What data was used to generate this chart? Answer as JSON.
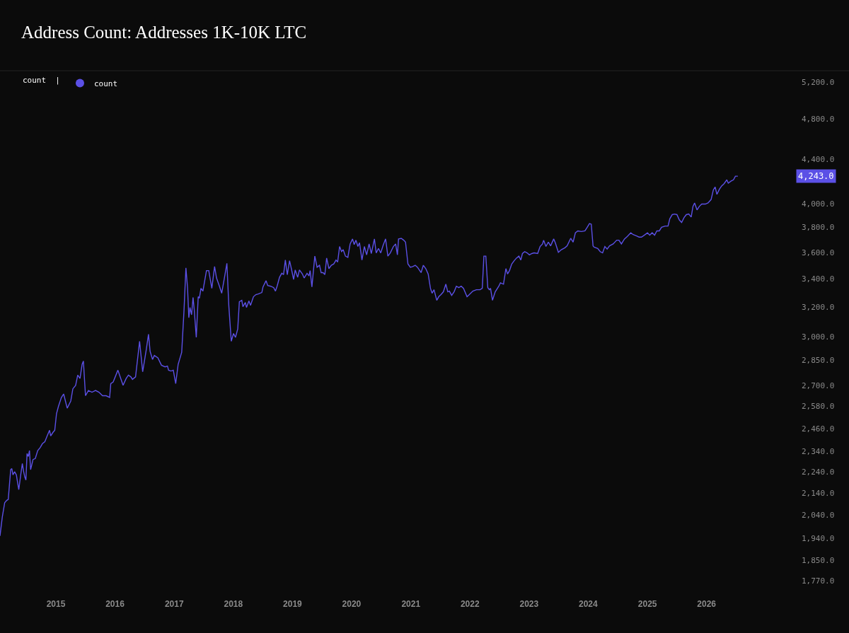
{
  "chart_data": {
    "type": "line",
    "title": "Address Count: Addresses 1K-10K LTC",
    "legend_title": "count |",
    "legend": "top left",
    "log": true,
    "x": [
      "2014-01-21",
      "2014-02-04",
      "2014-02-19",
      "2014-03-03",
      "2014-03-13",
      "2014-03-28",
      "2014-04-04",
      "2014-04-11",
      "2014-04-21",
      "2014-05-02",
      "2014-05-17",
      "2014-05-29",
      "2014-06-08",
      "2014-06-15",
      "2014-06-23",
      "2014-06-30",
      "2014-07-07",
      "2014-07-15",
      "2014-07-22",
      "2014-07-29",
      "2014-08-13",
      "2014-08-27",
      "2014-09-11",
      "2014-09-26",
      "2014-10-10",
      "2014-10-25",
      "2014-11-08",
      "2014-11-23",
      "2014-11-30",
      "2014-12-15",
      "2014-12-25",
      "2015-01-05",
      "2015-01-17",
      "2015-02-04",
      "2015-02-18",
      "2015-03-12",
      "2015-04-03",
      "2015-04-16",
      "2015-05-03",
      "2015-05-16",
      "2015-05-30",
      "2015-06-12",
      "2015-06-20",
      "2015-06-29",
      "2015-07-03",
      "2015-07-21",
      "2015-08-12",
      "2015-09-03",
      "2015-09-24",
      "2015-10-16",
      "2015-11-07",
      "2015-11-29",
      "2015-12-06",
      "2015-12-21",
      "2016-01-19",
      "2016-02-02",
      "2016-02-20",
      "2016-03-10",
      "2016-03-24",
      "2016-04-08",
      "2016-04-18",
      "2016-05-07",
      "2016-06-01",
      "2016-06-20",
      "2016-07-12",
      "2016-07-26",
      "2016-08-05",
      "2016-08-20",
      "2016-08-31",
      "2016-09-22",
      "2016-10-14",
      "2016-11-05",
      "2016-11-20",
      "2016-11-27",
      "2016-12-12",
      "2016-12-26",
      "2017-01-10",
      "2017-01-25",
      "2017-02-16",
      "2017-03-02",
      "2017-03-14",
      "2017-03-24",
      "2017-04-01",
      "2017-04-08",
      "2017-04-18",
      "2017-04-27",
      "2017-05-04",
      "2017-05-17",
      "2017-05-29",
      "2017-06-05",
      "2017-06-15",
      "2017-06-27",
      "2017-07-08",
      "2017-07-19",
      "2017-08-02",
      "2017-08-21",
      "2017-09-07",
      "2017-09-19",
      "2017-10-07",
      "2017-10-21",
      "2017-11-05",
      "2017-11-22",
      "2017-12-04",
      "2017-12-19",
      "2018-01-02",
      "2018-01-14",
      "2018-01-28",
      "2018-02-07",
      "2018-02-22",
      "2018-03-01",
      "2018-03-16",
      "2018-03-23",
      "2018-04-07",
      "2018-04-17",
      "2018-05-05",
      "2018-05-20",
      "2018-06-04",
      "2018-06-26",
      "2018-07-03",
      "2018-07-22",
      "2018-08-01",
      "2018-08-20",
      "2018-09-07",
      "2018-09-18",
      "2018-09-28",
      "2018-10-13",
      "2018-10-27",
      "2018-11-07",
      "2018-11-18",
      "2018-11-30",
      "2018-12-14",
      "2018-12-25",
      "2019-01-08",
      "2019-01-18",
      "2019-02-02",
      "2019-02-13",
      "2019-03-03",
      "2019-03-14",
      "2019-04-01",
      "2019-04-13",
      "2019-04-20",
      "2019-05-01",
      "2019-05-19",
      "2019-06-02",
      "2019-06-17",
      "2019-06-27",
      "2019-07-09",
      "2019-07-20",
      "2019-07-31",
      "2019-08-14",
      "2019-08-29",
      "2019-09-13",
      "2019-09-27",
      "2019-10-07",
      "2019-10-19",
      "2019-10-31",
      "2019-11-10",
      "2019-11-24",
      "2019-12-09",
      "2019-12-23",
      "2020-01-07",
      "2020-01-17",
      "2020-01-28",
      "2020-02-09",
      "2020-02-19",
      "2020-03-05",
      "2020-03-20",
      "2020-04-03",
      "2020-04-18",
      "2020-05-02",
      "2020-05-21",
      "2020-06-01",
      "2020-06-15",
      "2020-06-29",
      "2020-07-14",
      "2020-07-29",
      "2020-08-12",
      "2020-08-27",
      "2020-09-15",
      "2020-09-29",
      "2020-10-10",
      "2020-10-17",
      "2020-11-03",
      "2020-11-18",
      "2020-11-29",
      "2020-12-14",
      "2020-12-29",
      "2021-01-13",
      "2021-01-28",
      "2021-02-11",
      "2021-03-05",
      "2021-03-19",
      "2021-04-03",
      "2021-04-18",
      "2021-05-02",
      "2021-05-12",
      "2021-05-24",
      "2021-06-10",
      "2021-06-22",
      "2021-07-06",
      "2021-07-21",
      "2021-08-05",
      "2021-08-17",
      "2021-08-27",
      "2021-09-10",
      "2021-09-25",
      "2021-10-09",
      "2021-10-24",
      "2021-11-08",
      "2021-11-22",
      "2021-12-14",
      "2021-12-28",
      "2022-01-19",
      "2022-02-10",
      "2022-03-04",
      "2022-03-18",
      "2022-03-28",
      "2022-04-09",
      "2022-04-21",
      "2022-05-01",
      "2022-05-08",
      "2022-05-20",
      "2022-06-06",
      "2022-06-28",
      "2022-07-08",
      "2022-07-27",
      "2022-08-11",
      "2022-08-21",
      "2022-09-02",
      "2022-09-16",
      "2022-10-01",
      "2022-10-15",
      "2022-10-30",
      "2022-11-11",
      "2022-11-21",
      "2022-12-05",
      "2022-12-20",
      "2023-01-03",
      "2023-01-18",
      "2023-02-01",
      "2023-02-23",
      "2023-03-10",
      "2023-03-25",
      "2023-04-01",
      "2023-04-15",
      "2023-04-30",
      "2023-05-14",
      "2023-06-02",
      "2023-06-12",
      "2023-07-01",
      "2023-07-19",
      "2023-08-10",
      "2023-08-24",
      "2023-09-15",
      "2023-09-30",
      "2023-10-14",
      "2023-10-29",
      "2023-11-20",
      "2023-12-12",
      "2023-12-26",
      "2024-01-09",
      "2024-01-20",
      "2024-01-31",
      "2024-02-07",
      "2024-02-29",
      "2024-03-15",
      "2024-03-30",
      "2024-04-13",
      "2024-04-27",
      "2024-05-12",
      "2024-06-03",
      "2024-06-25",
      "2024-07-09",
      "2024-07-24",
      "2024-08-12",
      "2024-08-30",
      "2024-09-20",
      "2024-10-05",
      "2024-10-24",
      "2024-11-10",
      "2024-11-25",
      "2024-12-12",
      "2025-01-01",
      "2025-01-15",
      "2025-01-30",
      "2025-02-14",
      "2025-02-28",
      "2025-03-15",
      "2025-03-29",
      "2025-04-20",
      "2025-05-08",
      "2025-05-19",
      "2025-06-03",
      "2025-06-17",
      "2025-07-02",
      "2025-07-17",
      "2025-07-31",
      "2025-08-15",
      "2025-08-29",
      "2025-09-13",
      "2025-09-28",
      "2025-10-09",
      "2025-10-19",
      "2025-11-03",
      "2025-11-17",
      "2025-12-02",
      "2025-12-24",
      "2026-01-10",
      "2026-01-29",
      "2026-02-12",
      "2026-02-23",
      "2026-03-06",
      "2026-03-21",
      "2026-04-04",
      "2026-04-19",
      "2026-05-06",
      "2026-05-15",
      "2026-06-02",
      "2026-06-16",
      "2026-06-28",
      "2026-07-13"
    ],
    "series": [
      {
        "name": "count",
        "color": "#5b50e6",
        "values": [
          1950,
          2030,
          2095,
          2105,
          2110,
          2250,
          2255,
          2225,
          2240,
          2225,
          2155,
          2225,
          2280,
          2245,
          2215,
          2200,
          2330,
          2315,
          2345,
          2250,
          2300,
          2305,
          2345,
          2360,
          2380,
          2390,
          2420,
          2450,
          2420,
          2440,
          2450,
          2540,
          2580,
          2630,
          2650,
          2570,
          2610,
          2680,
          2700,
          2760,
          2740,
          2825,
          2845,
          2700,
          2640,
          2670,
          2660,
          2670,
          2660,
          2640,
          2640,
          2630,
          2710,
          2720,
          2790,
          2750,
          2700,
          2740,
          2760,
          2750,
          2735,
          2750,
          2970,
          2780,
          2915,
          3015,
          2905,
          2855,
          2880,
          2865,
          2820,
          2810,
          2815,
          2790,
          2785,
          2790,
          2710,
          2825,
          2900,
          3170,
          3480,
          3335,
          3125,
          3195,
          3145,
          3265,
          3185,
          2995,
          3270,
          3260,
          3330,
          3310,
          3385,
          3460,
          3460,
          3330,
          3490,
          3405,
          3345,
          3295,
          3395,
          3515,
          3205,
          2970,
          3020,
          2995,
          3050,
          3235,
          3245,
          3200,
          3230,
          3195,
          3240,
          3210,
          3270,
          3285,
          3290,
          3300,
          3340,
          3385,
          3350,
          3345,
          3335,
          3310,
          3345,
          3410,
          3440,
          3430,
          3540,
          3430,
          3535,
          3475,
          3395,
          3465,
          3410,
          3465,
          3435,
          3405,
          3440,
          3420,
          3460,
          3340,
          3570,
          3485,
          3500,
          3445,
          3445,
          3430,
          3555,
          3475,
          3500,
          3510,
          3540,
          3525,
          3645,
          3605,
          3620,
          3570,
          3560,
          3665,
          3705,
          3660,
          3695,
          3645,
          3675,
          3540,
          3645,
          3580,
          3665,
          3590,
          3705,
          3595,
          3630,
          3595,
          3655,
          3705,
          3570,
          3595,
          3645,
          3665,
          3580,
          3705,
          3710,
          3695,
          3680,
          3510,
          3485,
          3490,
          3500,
          3485,
          3445,
          3500,
          3475,
          3435,
          3330,
          3295,
          3320,
          3245,
          3270,
          3285,
          3305,
          3360,
          3305,
          3310,
          3280,
          3305,
          3345,
          3335,
          3345,
          3330,
          3270,
          3285,
          3310,
          3320,
          3320,
          3330,
          3570,
          3570,
          3335,
          3320,
          3330,
          3245,
          3305,
          3345,
          3370,
          3360,
          3475,
          3435,
          3460,
          3510,
          3535,
          3555,
          3570,
          3540,
          3590,
          3605,
          3595,
          3580,
          3590,
          3595,
          3590,
          3645,
          3665,
          3695,
          3645,
          3680,
          3650,
          3705,
          3675,
          3600,
          3620,
          3635,
          3650,
          3710,
          3680,
          3755,
          3770,
          3765,
          3770,
          3800,
          3830,
          3825,
          3650,
          3640,
          3630,
          3605,
          3595,
          3645,
          3625,
          3650,
          3665,
          3695,
          3695,
          3665,
          3705,
          3725,
          3755,
          3740,
          3730,
          3720,
          3720,
          3735,
          3755,
          3735,
          3755,
          3735,
          3770,
          3770,
          3800,
          3810,
          3810,
          3870,
          3905,
          3910,
          3905,
          3860,
          3840,
          3880,
          3905,
          3910,
          3885,
          3975,
          4005,
          3945,
          3975,
          3995,
          3995,
          4005,
          4035,
          4120,
          4145,
          4080,
          4125,
          4155,
          4175,
          4210,
          4180,
          4200,
          4210,
          4243,
          4243
        ]
      }
    ],
    "xlim": [
      "2014-01-21",
      "2027-06-15"
    ],
    "xticks": [
      "2015",
      "2016",
      "2017",
      "2018",
      "2019",
      "2020",
      "2021",
      "2022",
      "2023",
      "2024",
      "2025",
      "2026"
    ],
    "ylim": [
      1770,
      5330
    ],
    "yticks": [
      {
        "value": 1770,
        "label": "1,770.0"
      },
      {
        "value": 1850,
        "label": "1,850.0"
      },
      {
        "value": 1940,
        "label": "1,940.0"
      },
      {
        "value": 2040,
        "label": "2,040.0"
      },
      {
        "value": 2140,
        "label": "2,140.0"
      },
      {
        "value": 2240,
        "label": "2,240.0"
      },
      {
        "value": 2340,
        "label": "2,340.0"
      },
      {
        "value": 2460,
        "label": "2,460.0"
      },
      {
        "value": 2580,
        "label": "2,580.0"
      },
      {
        "value": 2700,
        "label": "2,700.0"
      },
      {
        "value": 2850,
        "label": "2,850.0"
      },
      {
        "value": 3000,
        "label": "3,000.0"
      },
      {
        "value": 3200,
        "label": "3,200.0"
      },
      {
        "value": 3400,
        "label": "3,400.0"
      },
      {
        "value": 3600,
        "label": "3,600.0"
      },
      {
        "value": 3800,
        "label": "3,800.0"
      },
      {
        "value": 4000,
        "label": "4,000.0"
      },
      {
        "value": 4400,
        "label": "4,400.0"
      },
      {
        "value": 4800,
        "label": "4,800.0"
      },
      {
        "value": 5200,
        "label": "5,200.0"
      }
    ],
    "annotations": [
      "4,243.0"
    ]
  }
}
